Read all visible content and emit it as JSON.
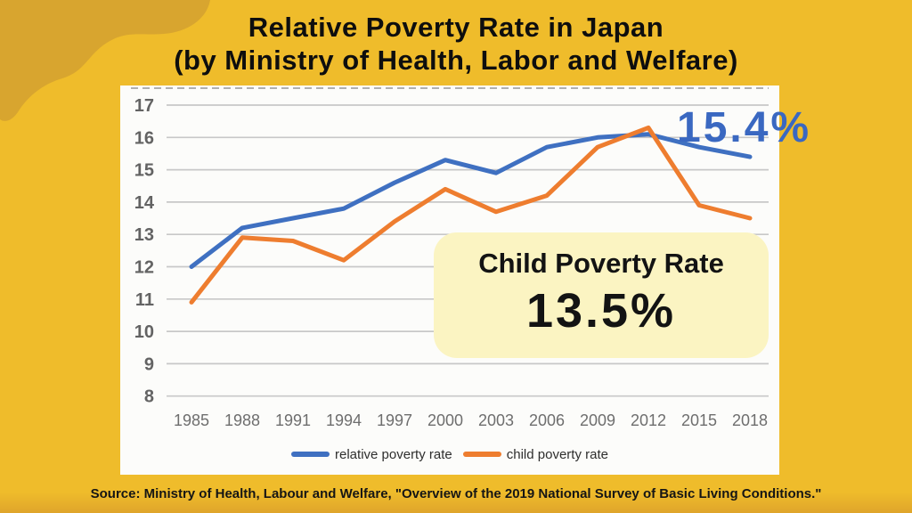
{
  "page": {
    "title_line1": "Relative Poverty Rate in Japan",
    "title_line2": "(by Ministry of Health, Labor and Welfare)",
    "source": "Source: Ministry of Health, Labour and Welfare, \"Overview of the 2019 National Survey of Basic Living Conditions.\""
  },
  "annotations": {
    "relative_2018_label": "15.4%",
    "callout_title": "Child Poverty Rate",
    "callout_value": "13.5%"
  },
  "chart_data": {
    "type": "line",
    "title": "",
    "xlabel": "",
    "ylabel": "",
    "categories": [
      "1985",
      "1988",
      "1991",
      "1994",
      "1997",
      "2000",
      "2003",
      "2006",
      "2009",
      "2012",
      "2015",
      "2018"
    ],
    "series": [
      {
        "name": "relative poverty rate",
        "color": "#3F70C1",
        "values": [
          12.0,
          13.2,
          13.5,
          13.8,
          14.6,
          15.3,
          14.9,
          15.7,
          16.0,
          16.1,
          15.7,
          15.4
        ]
      },
      {
        "name": "child poverty rate",
        "color": "#EE7D2F",
        "values": [
          10.9,
          12.9,
          12.8,
          12.2,
          13.4,
          14.4,
          13.7,
          14.2,
          15.7,
          16.3,
          13.9,
          13.5
        ]
      }
    ],
    "ylim": [
      8,
      17
    ],
    "yticks": [
      8,
      9,
      10,
      11,
      12,
      13,
      14,
      15,
      16,
      17
    ],
    "grid": true,
    "legend_position": "bottom"
  },
  "colors": {
    "background": "#EFBC2B",
    "corner_blob": "#D8A52F",
    "panel": "#FCFCFA",
    "grid": "#C8C8C8",
    "panel_top_edge": "#979797",
    "annotation_blue": "#3A68C1",
    "callout_bg": "#FBF4C2",
    "title_text": "#0E0E0E"
  }
}
